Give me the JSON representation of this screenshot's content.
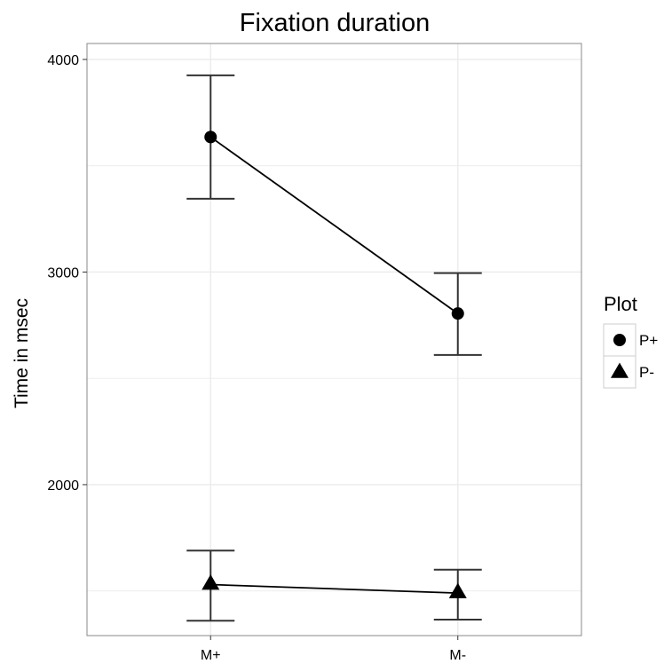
{
  "chart_data": {
    "type": "line",
    "title": "Fixation duration",
    "xlabel": "",
    "ylabel": "Time in msec",
    "categories": [
      "M+",
      "M-"
    ],
    "ylim": [
      1290,
      4075
    ],
    "yticks": [
      2000,
      3000,
      4000
    ],
    "grid": true,
    "legend": {
      "title": "Plot",
      "placement": "right"
    },
    "series": [
      {
        "name": "P+",
        "marker": "circle",
        "values": [
          3635,
          2805
        ],
        "error_low": [
          3345,
          2610
        ],
        "error_high": [
          3925,
          2995
        ]
      },
      {
        "name": "P-",
        "marker": "triangle",
        "values": [
          1530,
          1490
        ],
        "error_low": [
          1360,
          1365
        ],
        "error_high": [
          1690,
          1600
        ]
      }
    ],
    "colors": {
      "line": "#000000",
      "errorbar": "#333333",
      "gridline": "#ebebeb",
      "panel_border": "#888888"
    }
  }
}
